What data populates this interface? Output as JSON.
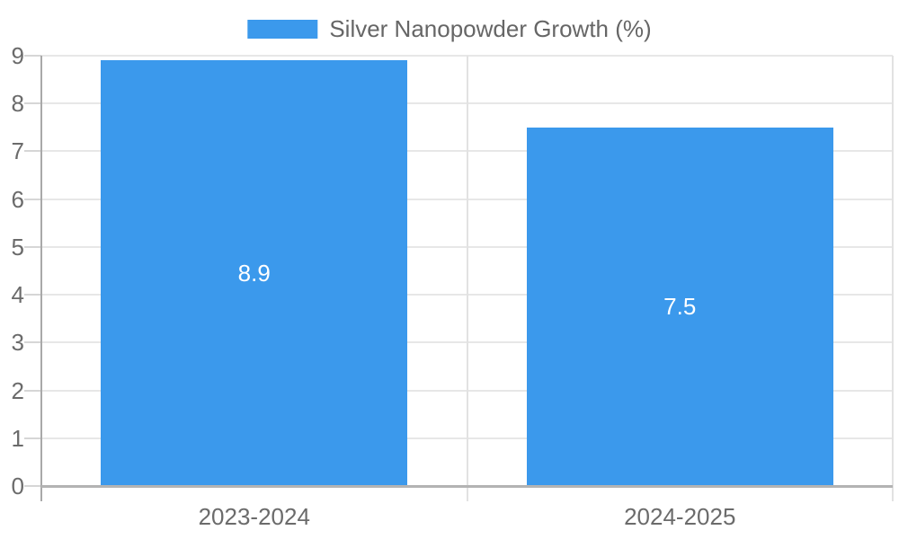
{
  "chart_data": {
    "type": "bar",
    "categories": [
      "2023-2024",
      "2024-2025"
    ],
    "series": [
      {
        "name": "Silver Nanopowder Growth (%)",
        "values": [
          8.9,
          7.5
        ]
      }
    ],
    "value_labels": [
      "8.9",
      "7.5"
    ],
    "title": "",
    "xlabel": "",
    "ylabel": "",
    "ylim": [
      0,
      9
    ],
    "yticks": [
      0,
      1,
      2,
      3,
      4,
      5,
      6,
      7,
      8,
      9
    ],
    "grid": true,
    "legend_position": "top-center",
    "style": {
      "bar_color": "#3B99EC",
      "value_label_color": "#ffffff",
      "grid_color": "#e7e7e7",
      "boundary_line_color": "#e2e2e2",
      "tick_color": "#d6d6d6",
      "x_axis_color": "#b3b3b3",
      "y_axis_color": "#a9a9a9",
      "tick_label_color": "#6b6b6b",
      "legend_text_color": "#666666",
      "background_color": "#ffffff"
    }
  }
}
